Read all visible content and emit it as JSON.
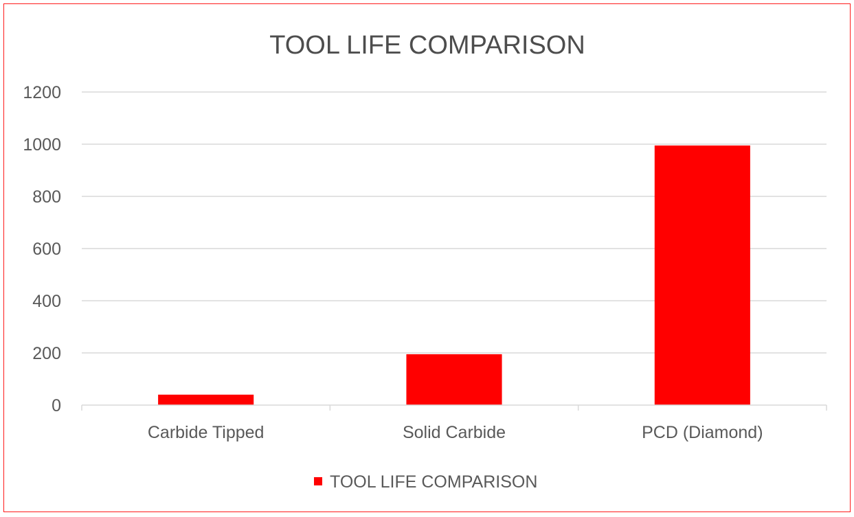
{
  "chart_data": {
    "type": "bar",
    "title": "TOOL LIFE COMPARISON",
    "xlabel": "",
    "ylabel": "",
    "categories": [
      "Carbide Tipped",
      "Solid Carbide",
      "PCD (Diamond)"
    ],
    "series": [
      {
        "name": "TOOL LIFE COMPARISON",
        "values": [
          40,
          195,
          995
        ],
        "color": "#ff0000"
      }
    ],
    "ylim": [
      0,
      1200
    ],
    "yticks": [
      0,
      200,
      400,
      600,
      800,
      1000,
      1200
    ],
    "ytick_labels": [
      "0",
      "200",
      "400",
      "600",
      "800",
      "1000",
      "1200"
    ],
    "grid": true,
    "legend": "bottom-center",
    "colors": {
      "bar": "#ff0000",
      "border": "#ff1a1a",
      "gridline": "#d9d9d9",
      "text": "#595959",
      "title": "#4d4d4d"
    }
  }
}
